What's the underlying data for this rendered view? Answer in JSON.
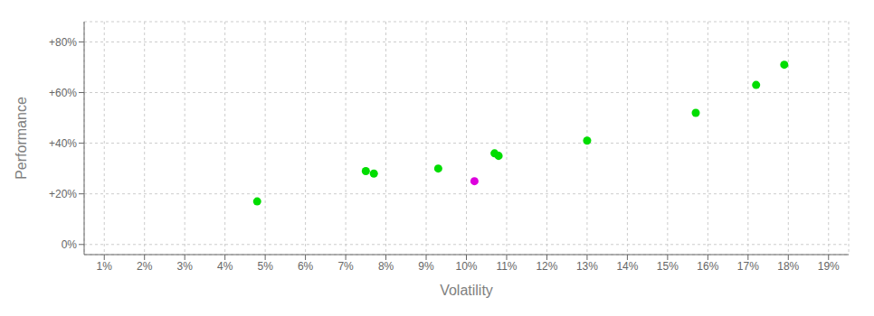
{
  "chart_data": {
    "type": "scatter",
    "xlabel": "Volatility",
    "ylabel": "Performance",
    "series": [
      {
        "color": "#00dd00",
        "x": [
          4.8,
          7.5,
          7.7,
          9.3,
          10.7,
          10.8,
          13.0,
          15.7,
          17.2,
          17.9
        ],
        "values": [
          17,
          29,
          28,
          30,
          36,
          35,
          41,
          52,
          63,
          71
        ]
      },
      {
        "color": "#dd00dd",
        "x": [
          10.2
        ],
        "values": [
          25
        ]
      }
    ],
    "xlim": [
      0.5,
      19.5
    ],
    "ylim": [
      -4,
      88
    ],
    "xticks": [
      {
        "value": 1,
        "label": "1%"
      },
      {
        "value": 2,
        "label": "2%"
      },
      {
        "value": 3,
        "label": "3%"
      },
      {
        "value": 4,
        "label": "4%"
      },
      {
        "value": 5,
        "label": "5%"
      },
      {
        "value": 6,
        "label": "6%"
      },
      {
        "value": 7,
        "label": "7%"
      },
      {
        "value": 8,
        "label": "8%"
      },
      {
        "value": 9,
        "label": "9%"
      },
      {
        "value": 10,
        "label": "10%"
      },
      {
        "value": 11,
        "label": "11%"
      },
      {
        "value": 12,
        "label": "12%"
      },
      {
        "value": 13,
        "label": "13%"
      },
      {
        "value": 14,
        "label": "14%"
      },
      {
        "value": 15,
        "label": "15%"
      },
      {
        "value": 16,
        "label": "16%"
      },
      {
        "value": 17,
        "label": "17%"
      },
      {
        "value": 18,
        "label": "18%"
      },
      {
        "value": 19,
        "label": "19%"
      }
    ],
    "yticks": [
      {
        "value": 0,
        "label": "0%"
      },
      {
        "value": 20,
        "label": "+20%"
      },
      {
        "value": 40,
        "label": "+40%"
      },
      {
        "value": 60,
        "label": "+60%"
      },
      {
        "value": 80,
        "label": "+80%"
      }
    ],
    "grid": true
  }
}
